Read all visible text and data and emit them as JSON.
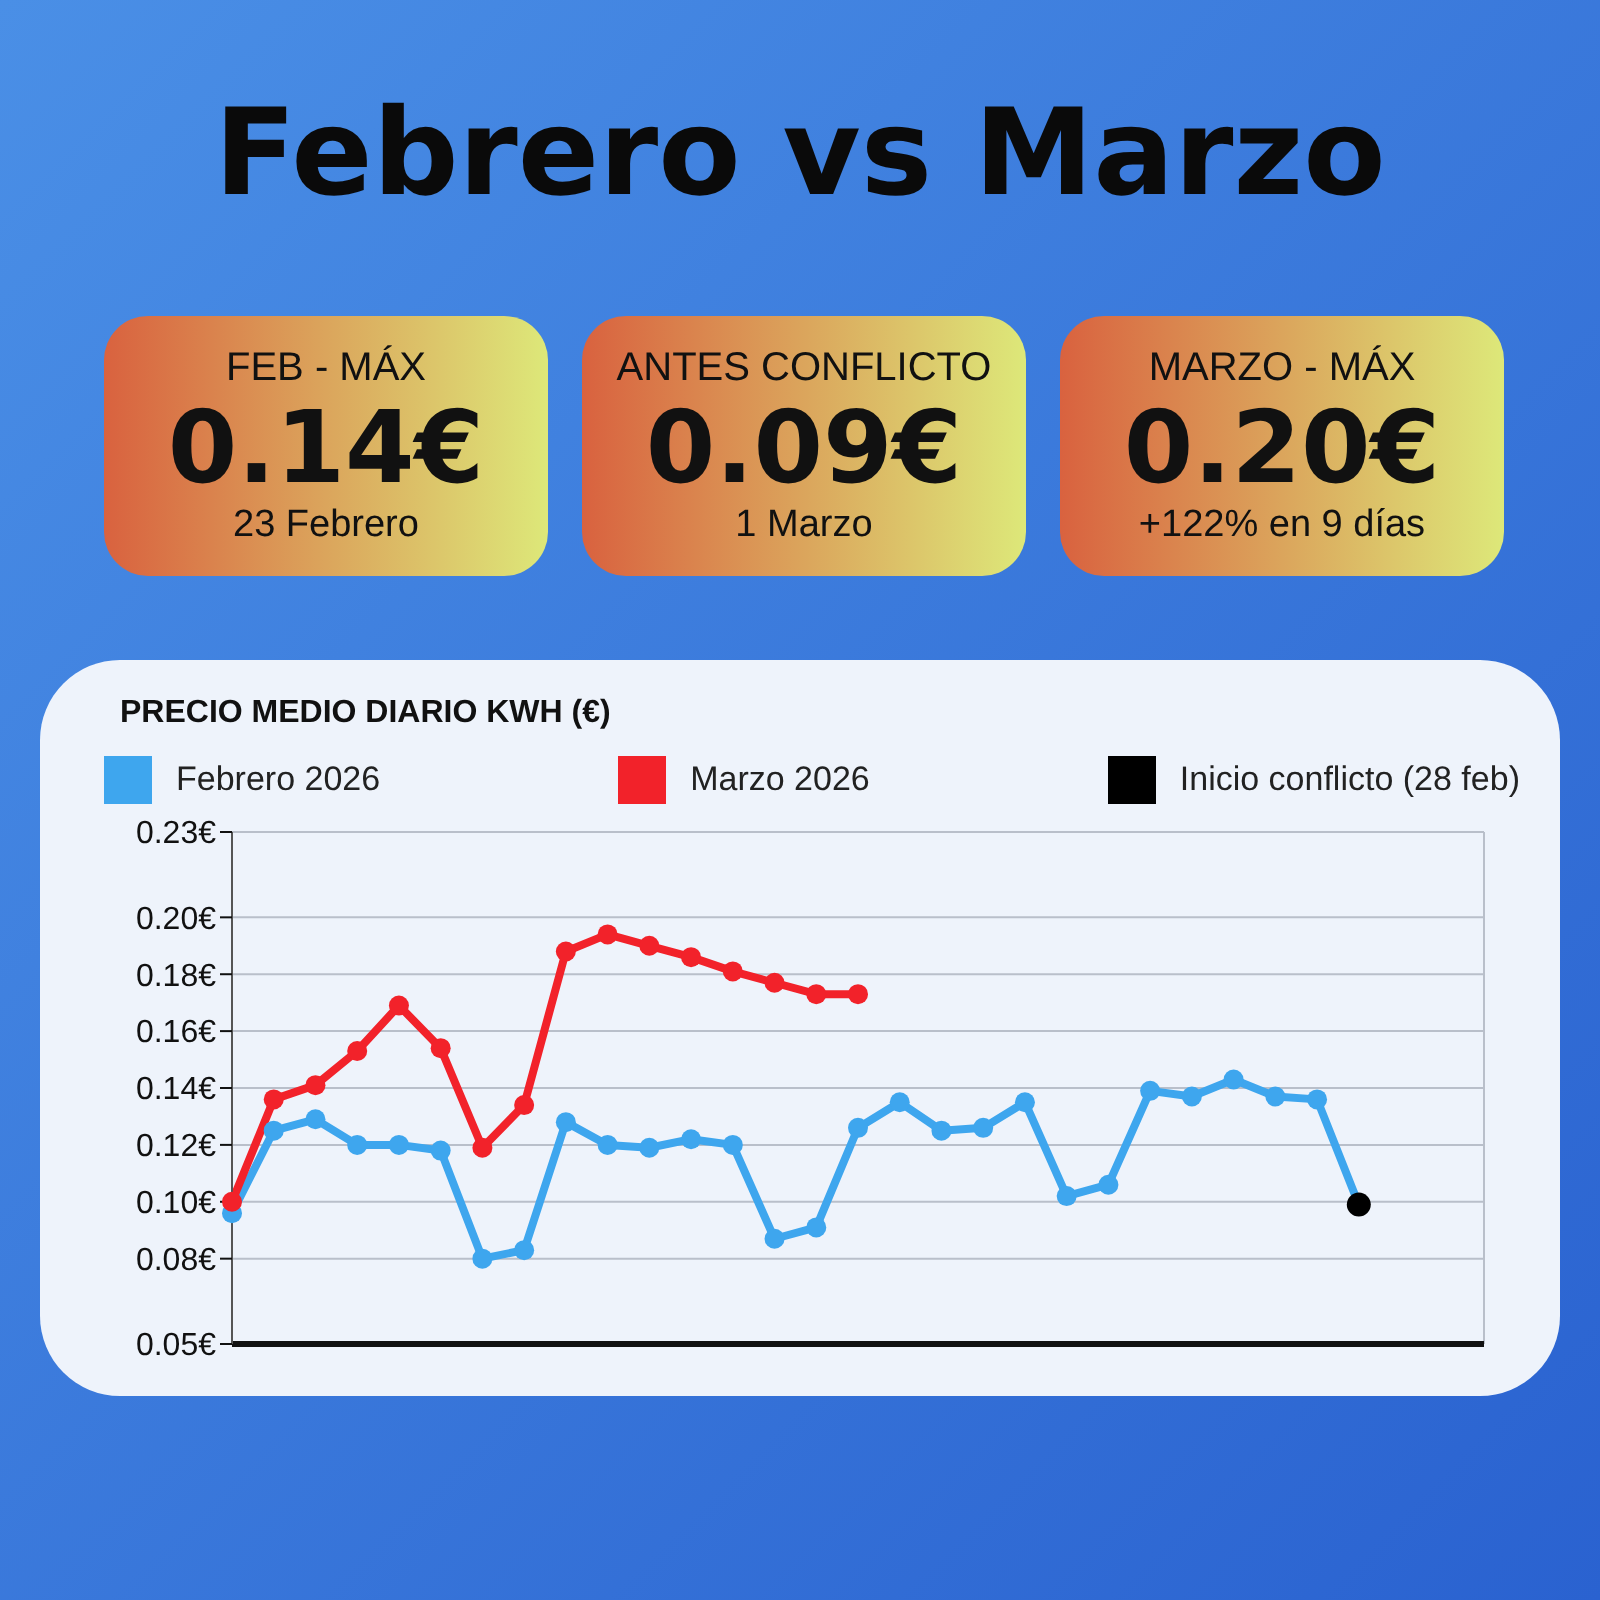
{
  "chart_data": {
    "type": "line",
    "title": "Febrero vs Marzo",
    "subtitle": "PRECIO MEDIO DIARIO KWH (€)",
    "annotations": [
      "FEB - MÁX",
      "0.14€",
      "23 Febrero",
      "ANTES CONFLICTO",
      "0.09€",
      "1 Marzo",
      "MARZO - MÁX",
      "0.20€",
      "+122% en 9 días"
    ],
    "categories": [
      null,
      null,
      null,
      null,
      null,
      null,
      null,
      null,
      null,
      null,
      null,
      null,
      null,
      null,
      null,
      null,
      null,
      null,
      null,
      null,
      null,
      null,
      null,
      null,
      null,
      null,
      null,
      null,
      null,
      null,
      null
    ],
    "series": [
      {
        "name": "Febrero 2026",
        "color": "#3ea6ee",
        "values": [
          0.096,
          0.125,
          0.129,
          0.12,
          0.12,
          0.118,
          0.08,
          0.083,
          0.128,
          0.12,
          0.119,
          0.122,
          0.12,
          0.087,
          0.091,
          0.126,
          0.135,
          0.125,
          0.126,
          0.135,
          0.102,
          0.106,
          0.139,
          0.137,
          0.143,
          0.137,
          0.136,
          0.099,
          null,
          null,
          null
        ]
      },
      {
        "name": "Marzo 2026",
        "color": "#f2222a",
        "values": [
          0.1,
          0.136,
          0.141,
          0.153,
          0.169,
          0.154,
          0.119,
          0.134,
          0.188,
          0.194,
          0.19,
          0.186,
          0.181,
          0.177,
          0.173,
          0.173,
          null,
          null,
          null,
          null,
          null,
          null,
          null,
          null,
          null,
          null,
          null,
          null,
          null,
          null,
          null
        ]
      },
      {
        "name": "Inicio conflicto (28 feb)",
        "color": "#000000",
        "values": [
          null,
          null,
          null,
          null,
          null,
          null,
          null,
          null,
          null,
          null,
          null,
          null,
          null,
          null,
          null,
          null,
          null,
          null,
          null,
          null,
          null,
          null,
          null,
          null,
          null,
          null,
          null,
          0.099,
          null,
          null,
          null
        ]
      }
    ],
    "ylim": [
      0.05,
      0.23
    ],
    "yticks": [
      {
        "value": 0.05,
        "label": "0.05€"
      },
      {
        "value": 0.08,
        "label": "0.08€"
      },
      {
        "value": 0.1,
        "label": "0.10€"
      },
      {
        "value": 0.12,
        "label": "0.12€"
      },
      {
        "value": 0.14,
        "label": "0.14€"
      },
      {
        "value": 0.16,
        "label": "0.16€"
      },
      {
        "value": 0.18,
        "label": "0.18€"
      },
      {
        "value": 0.2,
        "label": "0.20€"
      },
      {
        "value": 0.23,
        "label": "0.23€"
      }
    ],
    "tick_labels": "y",
    "grid": true,
    "legend": "top",
    "marker": "circle",
    "line_style": "solid"
  }
}
